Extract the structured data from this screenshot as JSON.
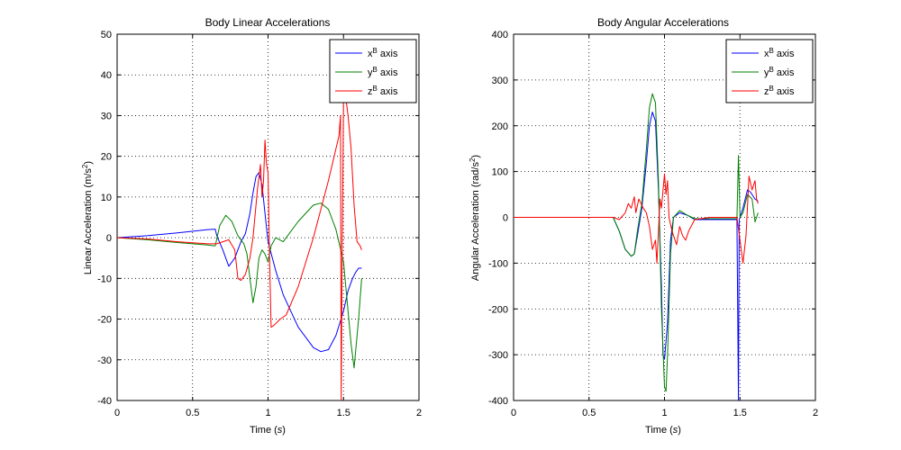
{
  "chart_data": [
    {
      "type": "line",
      "title": "Body Linear Accelerations",
      "xlabel": "Time (s)",
      "ylabel": "Linear Acceleration (m/s²)",
      "xlim": [
        0,
        2
      ],
      "ylim": [
        -40,
        50
      ],
      "xticks": [
        "0",
        "0.5",
        "1",
        "1.5",
        "2"
      ],
      "yticks": [
        "-40",
        "-30",
        "-20",
        "-10",
        "0",
        "10",
        "20",
        "30",
        "40",
        "50"
      ],
      "grid": true,
      "legend_position": "top-right",
      "series": [
        {
          "name": "xB axis",
          "legend_base": "x",
          "legend_sup": "B",
          "legend_rest": " axis",
          "color": "#0000ff",
          "x": [
            0,
            0.2,
            0.4,
            0.6,
            0.65,
            0.66,
            0.7,
            0.74,
            0.78,
            0.82,
            0.85,
            0.88,
            0.9,
            0.92,
            0.94,
            0.96,
            0.98,
            1.0,
            1.05,
            1.1,
            1.2,
            1.3,
            1.35,
            1.4,
            1.45,
            1.5,
            1.53,
            1.56,
            1.58,
            1.6,
            1.62
          ],
          "y": [
            0,
            0.5,
            1.2,
            2,
            2.1,
            0.5,
            -3,
            -7,
            -5,
            -1,
            1,
            6,
            11,
            15,
            16,
            13,
            6,
            -1,
            -8,
            -14,
            -22,
            -27,
            -28,
            -27.5,
            -24,
            -18,
            -13,
            -10,
            -8.5,
            -7.5,
            -7.5
          ]
        },
        {
          "name": "yB axis",
          "legend_base": "y",
          "legend_sup": "B",
          "legend_rest": " axis",
          "color": "#008000",
          "x": [
            0,
            0.2,
            0.4,
            0.6,
            0.65,
            0.68,
            0.72,
            0.76,
            0.8,
            0.84,
            0.86,
            0.88,
            0.9,
            0.92,
            0.94,
            0.96,
            0.98,
            1.0,
            1.02,
            1.05,
            1.1,
            1.2,
            1.3,
            1.35,
            1.4,
            1.45,
            1.5,
            1.52,
            1.55,
            1.57,
            1.6,
            1.62
          ],
          "y": [
            0,
            -0.5,
            -1.2,
            -1.8,
            -2,
            3,
            5.5,
            4,
            0.5,
            -1.5,
            -4,
            -10,
            -16,
            -12,
            -5,
            -3,
            -4,
            -6,
            -2,
            0,
            -1,
            4,
            8,
            8.5,
            7,
            2,
            -6,
            -14,
            -26,
            -32,
            -20,
            -10
          ]
        },
        {
          "name": "zB axis",
          "legend_base": "z",
          "legend_sup": "B",
          "legend_rest": " axis",
          "color": "#ff0000",
          "x": [
            0,
            0.2,
            0.4,
            0.6,
            0.66,
            0.7,
            0.74,
            0.78,
            0.8,
            0.82,
            0.85,
            0.88,
            0.9,
            0.93,
            0.95,
            0.96,
            0.97,
            0.98,
            0.99,
            1.0,
            1.01,
            1.02,
            1.04,
            1.08,
            1.12,
            1.2,
            1.3,
            1.4,
            1.47,
            1.48,
            1.485,
            1.49,
            1.5,
            1.52,
            1.53,
            1.55,
            1.57,
            1.59,
            1.61,
            1.62
          ],
          "y": [
            0,
            -0.3,
            -1,
            -1.5,
            -1.5,
            -1,
            -0.5,
            -3,
            -10,
            -10.5,
            -9,
            -5,
            0,
            12,
            18,
            10,
            14,
            24,
            18,
            16,
            -5,
            -22,
            -21.5,
            -20,
            -19,
            -12,
            0,
            14,
            25,
            30,
            -40,
            -10,
            35,
            33,
            30,
            22,
            8,
            -1,
            -2,
            -3
          ]
        }
      ]
    },
    {
      "type": "line",
      "title": "Body Angular Accelerations",
      "xlabel": "Time (s)",
      "ylabel": "Angular Acceleration (rad/s²)",
      "xlim": [
        0,
        2
      ],
      "ylim": [
        -400,
        400
      ],
      "xticks": [
        "0",
        "0.5",
        "1",
        "1.5",
        "2"
      ],
      "yticks": [
        "-400",
        "-300",
        "-200",
        "-100",
        "0",
        "100",
        "200",
        "300",
        "400"
      ],
      "grid": true,
      "legend_position": "top-right",
      "series": [
        {
          "name": "xB axis",
          "legend_base": "x",
          "legend_sup": "B",
          "legend_rest": " axis",
          "color": "#0000ff",
          "x": [
            0,
            0.3,
            0.5,
            0.66,
            0.7,
            0.74,
            0.78,
            0.8,
            0.82,
            0.85,
            0.88,
            0.9,
            0.92,
            0.94,
            0.96,
            0.98,
            0.99,
            1.0,
            1.02,
            1.04,
            1.06,
            1.1,
            1.15,
            1.2,
            1.3,
            1.4,
            1.48,
            1.49,
            1.495,
            1.5,
            1.52,
            1.55,
            1.57,
            1.6,
            1.62
          ],
          "y": [
            0,
            0,
            0,
            0,
            -30,
            -70,
            -85,
            -80,
            -40,
            20,
            120,
            200,
            230,
            210,
            60,
            -150,
            -300,
            -310,
            -230,
            -50,
            0,
            10,
            5,
            -5,
            -5,
            -5,
            -5,
            -400,
            -5,
            0,
            20,
            60,
            55,
            40,
            35
          ]
        },
        {
          "name": "yB axis",
          "legend_base": "y",
          "legend_sup": "B",
          "legend_rest": " axis",
          "color": "#008000",
          "x": [
            0,
            0.3,
            0.5,
            0.66,
            0.7,
            0.74,
            0.78,
            0.8,
            0.82,
            0.85,
            0.88,
            0.9,
            0.92,
            0.94,
            0.96,
            0.98,
            1.0,
            1.01,
            1.02,
            1.04,
            1.06,
            1.1,
            1.15,
            1.2,
            1.3,
            1.4,
            1.48,
            1.49,
            1.5,
            1.52,
            1.55,
            1.58,
            1.6,
            1.62
          ],
          "y": [
            0,
            0,
            0,
            0,
            -30,
            -70,
            -85,
            -80,
            -30,
            30,
            150,
            240,
            270,
            250,
            80,
            -200,
            -370,
            -380,
            -300,
            -80,
            0,
            15,
            5,
            -3,
            -3,
            -3,
            -3,
            135,
            0,
            10,
            50,
            40,
            -10,
            10
          ]
        },
        {
          "name": "zB axis",
          "legend_base": "z",
          "legend_sup": "B",
          "legend_rest": " axis",
          "color": "#ff0000",
          "x": [
            0,
            0.3,
            0.5,
            0.66,
            0.7,
            0.74,
            0.76,
            0.78,
            0.8,
            0.81,
            0.83,
            0.86,
            0.88,
            0.9,
            0.92,
            0.94,
            0.95,
            0.96,
            0.97,
            0.98,
            1.0,
            1.01,
            1.02,
            1.03,
            1.05,
            1.08,
            1.1,
            1.12,
            1.14,
            1.16,
            1.2,
            1.3,
            1.4,
            1.48,
            1.5,
            1.52,
            1.54,
            1.56,
            1.58,
            1.6,
            1.61,
            1.62
          ],
          "y": [
            0,
            0,
            0,
            0,
            -5,
            10,
            30,
            20,
            45,
            10,
            40,
            20,
            10,
            -20,
            -70,
            -50,
            -100,
            -30,
            40,
            20,
            95,
            50,
            80,
            0,
            -30,
            -60,
            -20,
            -40,
            -50,
            -30,
            -5,
            0,
            0,
            0,
            -50,
            -100,
            -40,
            90,
            60,
            80,
            40,
            30
          ]
        }
      ]
    }
  ]
}
